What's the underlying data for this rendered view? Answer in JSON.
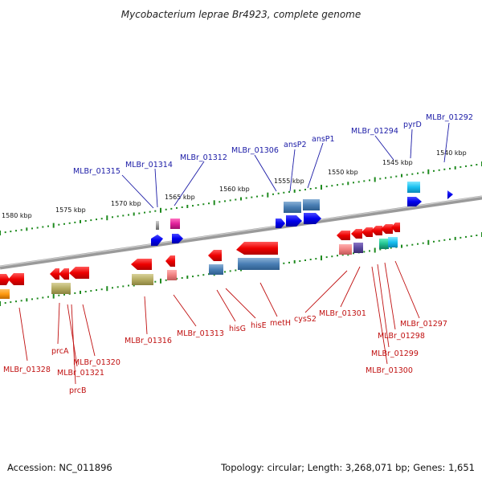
{
  "title": "Mycobacterium leprae Br4923, complete genome",
  "footer": {
    "accession": "Accession: NC_011896",
    "summary": "Topology: circular; Length: 3,268,071 bp; Genes: 1,651"
  },
  "colors": {
    "backbone": "#7a7a7a",
    "top_label": "#1a1aa6",
    "bottom_label": "#c01010",
    "tick": "#1e8a1e"
  },
  "scale_labels": [
    "1580 kbp",
    "1575 kbp",
    "1570 kbp",
    "1565 kbp",
    "1560 kbp",
    "1555 kbp",
    "1550 kbp",
    "1545 kbp",
    "1540 kbp"
  ],
  "top_genes": [
    {
      "label": "MLBr_01315"
    },
    {
      "label": "MLBr_01314"
    },
    {
      "label": "MLBr_01312"
    },
    {
      "label": "MLBr_01306"
    },
    {
      "label": "ansP2"
    },
    {
      "label": "ansP1"
    },
    {
      "label": "MLBr_01294"
    },
    {
      "label": "pyrD"
    },
    {
      "label": "MLBr_01292"
    }
  ],
  "bottom_genes": [
    {
      "label": "MLBr_01328"
    },
    {
      "label": "prcA"
    },
    {
      "label": "MLBr_01321"
    },
    {
      "label": "prcB"
    },
    {
      "label": "MLBr_01320"
    },
    {
      "label": "MLBr_01316"
    },
    {
      "label": "MLBr_01313"
    },
    {
      "label": "hisG"
    },
    {
      "label": "hisE"
    },
    {
      "label": "metH"
    },
    {
      "label": "cysS2"
    },
    {
      "label": "MLBr_01301"
    },
    {
      "label": "MLBr_01300"
    },
    {
      "label": "MLBr_01299"
    },
    {
      "label": "MLBr_01298"
    },
    {
      "label": "MLBr_01297"
    }
  ]
}
